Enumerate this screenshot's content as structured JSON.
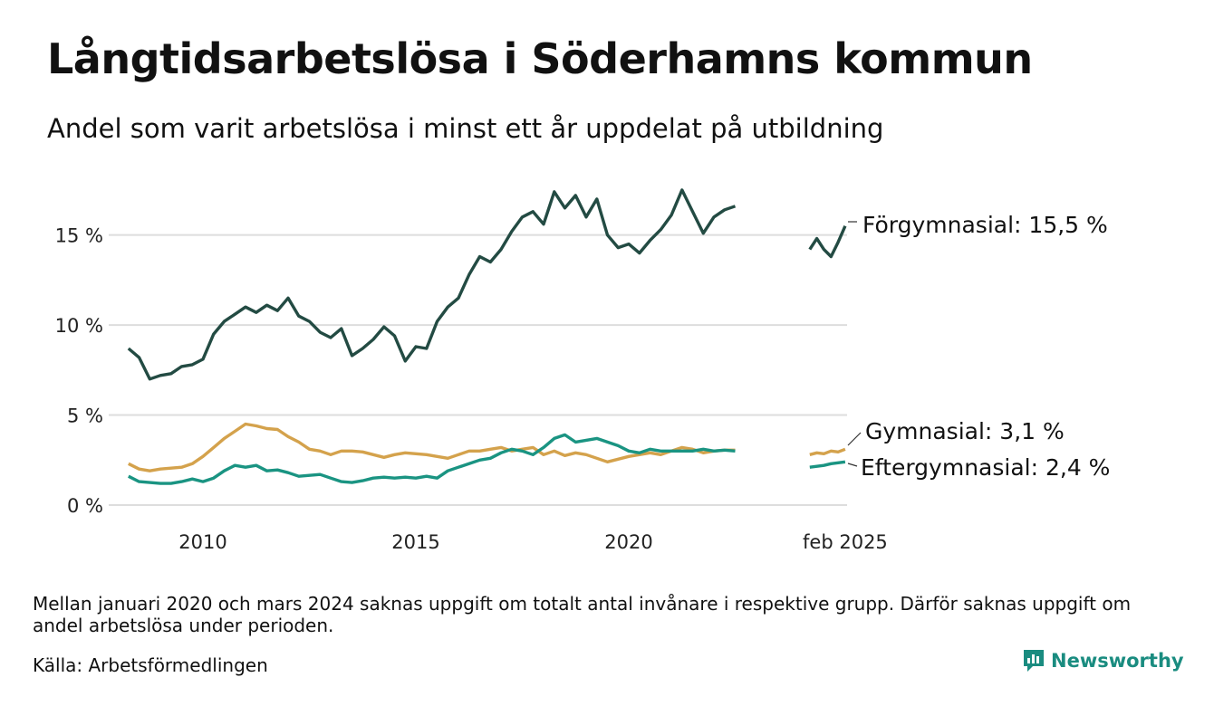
{
  "title": "Långtidsarbetslösa i Söderhamns kommun",
  "subtitle": "Andel som varit arbetslösa i minst ett år uppdelat på utbildning",
  "note": "Mellan januari 2020 och mars 2024 saknas uppgift om totalt antal invånare i respektive grupp. Därför saknas uppgift om andel arbetslösa under perioden.",
  "source": "Källa: Arbetsförmedlingen",
  "brand": "Newsworthy",
  "colors": {
    "forgymnasial": "#234b43",
    "gymnasial": "#d4a24c",
    "eftergymnasial": "#1a9482",
    "grid": "#dddddd",
    "brand": "#1a8c80"
  },
  "chart_data": {
    "type": "line",
    "x_ticks": [
      "2010",
      "2015",
      "2020",
      "feb 2025"
    ],
    "y_ticks": [
      "0 %",
      "5 %",
      "10 %",
      "15 %"
    ],
    "ylim": [
      0,
      18
    ],
    "y_unit": "%",
    "grid": true,
    "series": [
      {
        "name": "Förgymnasial",
        "end_label": "Förgymnasial: 15,5 %",
        "color_key": "forgymnasial",
        "points": [
          [
            "2008-04",
            8.7
          ],
          [
            "2008-07",
            8.2
          ],
          [
            "2008-10",
            7.0
          ],
          [
            "2009-01",
            7.2
          ],
          [
            "2009-04",
            7.3
          ],
          [
            "2009-07",
            7.7
          ],
          [
            "2009-10",
            7.8
          ],
          [
            "2010-01",
            8.1
          ],
          [
            "2010-04",
            9.5
          ],
          [
            "2010-07",
            10.2
          ],
          [
            "2010-10",
            10.6
          ],
          [
            "2011-01",
            11.0
          ],
          [
            "2011-04",
            10.7
          ],
          [
            "2011-07",
            11.1
          ],
          [
            "2011-10",
            10.8
          ],
          [
            "2012-01",
            11.5
          ],
          [
            "2012-04",
            10.5
          ],
          [
            "2012-07",
            10.2
          ],
          [
            "2012-10",
            9.6
          ],
          [
            "2013-01",
            9.3
          ],
          [
            "2013-04",
            9.8
          ],
          [
            "2013-07",
            8.3
          ],
          [
            "2013-10",
            8.7
          ],
          [
            "2014-01",
            9.2
          ],
          [
            "2014-04",
            9.9
          ],
          [
            "2014-07",
            9.4
          ],
          [
            "2014-10",
            8.0
          ],
          [
            "2015-01",
            8.8
          ],
          [
            "2015-04",
            8.7
          ],
          [
            "2015-07",
            10.2
          ],
          [
            "2015-10",
            11.0
          ],
          [
            "2016-01",
            11.5
          ],
          [
            "2016-04",
            12.8
          ],
          [
            "2016-07",
            13.8
          ],
          [
            "2016-10",
            13.5
          ],
          [
            "2017-01",
            14.2
          ],
          [
            "2017-04",
            15.2
          ],
          [
            "2017-07",
            16.0
          ],
          [
            "2017-10",
            16.3
          ],
          [
            "2018-01",
            15.6
          ],
          [
            "2018-04",
            17.4
          ],
          [
            "2018-07",
            16.5
          ],
          [
            "2018-10",
            17.2
          ],
          [
            "2019-01",
            16.0
          ],
          [
            "2019-04",
            17.0
          ],
          [
            "2019-07",
            15.0
          ],
          [
            "2019-10",
            14.3
          ],
          [
            "2020-01",
            14.5
          ],
          [
            "2020-04",
            14.0
          ],
          [
            "2020-07",
            14.7
          ],
          [
            "2020-10",
            15.3
          ],
          [
            "2021-01",
            16.1
          ],
          [
            "2021-04",
            17.5
          ],
          [
            "2021-07",
            16.3
          ],
          [
            "2021-10",
            15.1
          ],
          [
            "2022-01",
            16.0
          ],
          [
            "2022-04",
            16.4
          ],
          [
            "2022-07",
            16.6
          ]
        ],
        "segment2": [
          [
            "2024-04",
            14.2
          ],
          [
            "2024-06",
            14.8
          ],
          [
            "2024-08",
            14.2
          ],
          [
            "2024-10",
            13.8
          ],
          [
            "2024-12",
            14.6
          ],
          [
            "2025-02",
            15.5
          ]
        ]
      },
      {
        "name": "Gymnasial",
        "end_label": "Gymnasial:  3,1 %",
        "color_key": "gymnasial",
        "points": [
          [
            "2008-04",
            2.3
          ],
          [
            "2008-07",
            2.0
          ],
          [
            "2008-10",
            1.9
          ],
          [
            "2009-01",
            2.0
          ],
          [
            "2009-04",
            2.05
          ],
          [
            "2009-07",
            2.1
          ],
          [
            "2009-10",
            2.3
          ],
          [
            "2010-01",
            2.7
          ],
          [
            "2010-04",
            3.2
          ],
          [
            "2010-07",
            3.7
          ],
          [
            "2010-10",
            4.1
          ],
          [
            "2011-01",
            4.5
          ],
          [
            "2011-04",
            4.4
          ],
          [
            "2011-07",
            4.25
          ],
          [
            "2011-10",
            4.2
          ],
          [
            "2012-01",
            3.8
          ],
          [
            "2012-04",
            3.5
          ],
          [
            "2012-07",
            3.1
          ],
          [
            "2012-10",
            3.0
          ],
          [
            "2013-01",
            2.8
          ],
          [
            "2013-04",
            3.0
          ],
          [
            "2013-07",
            3.0
          ],
          [
            "2013-10",
            2.95
          ],
          [
            "2014-01",
            2.8
          ],
          [
            "2014-04",
            2.65
          ],
          [
            "2014-07",
            2.8
          ],
          [
            "2014-10",
            2.9
          ],
          [
            "2015-01",
            2.85
          ],
          [
            "2015-04",
            2.8
          ],
          [
            "2015-07",
            2.7
          ],
          [
            "2015-10",
            2.6
          ],
          [
            "2016-01",
            2.8
          ],
          [
            "2016-04",
            3.0
          ],
          [
            "2016-07",
            3.0
          ],
          [
            "2016-10",
            3.1
          ],
          [
            "2017-01",
            3.2
          ],
          [
            "2017-04",
            3.0
          ],
          [
            "2017-07",
            3.1
          ],
          [
            "2017-10",
            3.2
          ],
          [
            "2018-01",
            2.8
          ],
          [
            "2018-04",
            3.0
          ],
          [
            "2018-07",
            2.75
          ],
          [
            "2018-10",
            2.9
          ],
          [
            "2019-01",
            2.8
          ],
          [
            "2019-04",
            2.6
          ],
          [
            "2019-07",
            2.4
          ],
          [
            "2019-10",
            2.55
          ],
          [
            "2020-01",
            2.7
          ],
          [
            "2020-04",
            2.8
          ],
          [
            "2020-07",
            2.9
          ],
          [
            "2020-10",
            2.8
          ],
          [
            "2021-01",
            3.0
          ],
          [
            "2021-04",
            3.2
          ],
          [
            "2021-07",
            3.1
          ],
          [
            "2021-10",
            2.9
          ],
          [
            "2022-01",
            3.0
          ],
          [
            "2022-04",
            3.05
          ],
          [
            "2022-07",
            3.05
          ]
        ],
        "segment2": [
          [
            "2024-04",
            2.8
          ],
          [
            "2024-06",
            2.9
          ],
          [
            "2024-08",
            2.85
          ],
          [
            "2024-10",
            3.0
          ],
          [
            "2024-12",
            2.95
          ],
          [
            "2025-02",
            3.1
          ]
        ]
      },
      {
        "name": "Eftergymnasial",
        "end_label": "Eftergymnasial:  2,4 %",
        "color_key": "eftergymnasial",
        "points": [
          [
            "2008-04",
            1.6
          ],
          [
            "2008-07",
            1.3
          ],
          [
            "2008-10",
            1.25
          ],
          [
            "2009-01",
            1.2
          ],
          [
            "2009-04",
            1.2
          ],
          [
            "2009-07",
            1.3
          ],
          [
            "2009-10",
            1.45
          ],
          [
            "2010-01",
            1.3
          ],
          [
            "2010-04",
            1.5
          ],
          [
            "2010-07",
            1.9
          ],
          [
            "2010-10",
            2.2
          ],
          [
            "2011-01",
            2.1
          ],
          [
            "2011-04",
            2.2
          ],
          [
            "2011-07",
            1.9
          ],
          [
            "2011-10",
            1.95
          ],
          [
            "2012-01",
            1.8
          ],
          [
            "2012-04",
            1.6
          ],
          [
            "2012-07",
            1.65
          ],
          [
            "2012-10",
            1.7
          ],
          [
            "2013-01",
            1.5
          ],
          [
            "2013-04",
            1.3
          ],
          [
            "2013-07",
            1.25
          ],
          [
            "2013-10",
            1.35
          ],
          [
            "2014-01",
            1.5
          ],
          [
            "2014-04",
            1.55
          ],
          [
            "2014-07",
            1.5
          ],
          [
            "2014-10",
            1.55
          ],
          [
            "2015-01",
            1.5
          ],
          [
            "2015-04",
            1.6
          ],
          [
            "2015-07",
            1.5
          ],
          [
            "2015-10",
            1.9
          ],
          [
            "2016-01",
            2.1
          ],
          [
            "2016-04",
            2.3
          ],
          [
            "2016-07",
            2.5
          ],
          [
            "2016-10",
            2.6
          ],
          [
            "2017-01",
            2.9
          ],
          [
            "2017-04",
            3.1
          ],
          [
            "2017-07",
            3.0
          ],
          [
            "2017-10",
            2.8
          ],
          [
            "2018-01",
            3.2
          ],
          [
            "2018-04",
            3.7
          ],
          [
            "2018-07",
            3.9
          ],
          [
            "2018-10",
            3.5
          ],
          [
            "2019-01",
            3.6
          ],
          [
            "2019-04",
            3.7
          ],
          [
            "2019-07",
            3.5
          ],
          [
            "2019-10",
            3.3
          ],
          [
            "2020-01",
            3.0
          ],
          [
            "2020-04",
            2.9
          ],
          [
            "2020-07",
            3.1
          ],
          [
            "2020-10",
            3.0
          ],
          [
            "2021-01",
            3.0
          ],
          [
            "2021-04",
            3.0
          ],
          [
            "2021-07",
            3.0
          ],
          [
            "2021-10",
            3.1
          ],
          [
            "2022-01",
            3.0
          ],
          [
            "2022-04",
            3.05
          ],
          [
            "2022-07",
            3.0
          ]
        ],
        "segment2": [
          [
            "2024-04",
            2.1
          ],
          [
            "2024-06",
            2.15
          ],
          [
            "2024-08",
            2.2
          ],
          [
            "2024-10",
            2.3
          ],
          [
            "2024-12",
            2.35
          ],
          [
            "2025-02",
            2.4
          ]
        ]
      }
    ]
  }
}
